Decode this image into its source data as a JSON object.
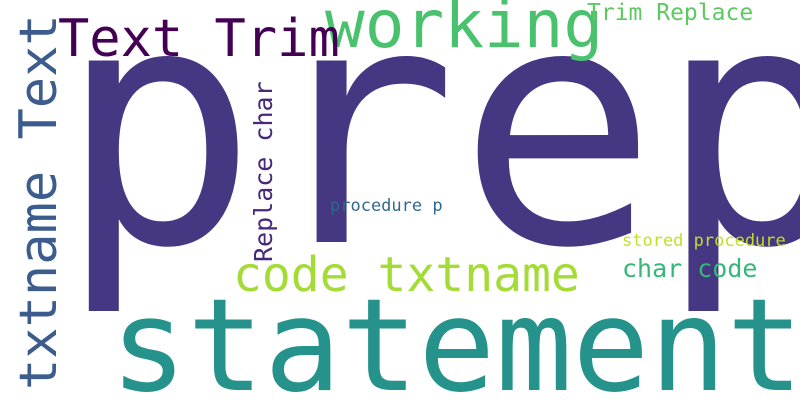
{
  "words": {
    "prep": {
      "text": "prep",
      "color": "#453781"
    },
    "statement": {
      "text": "statement",
      "color": "#25938b"
    },
    "working": {
      "text": "working",
      "color": "#4ac16d"
    },
    "text_trim": {
      "text": "Text Trim",
      "color": "#440154"
    },
    "txtname_text": {
      "text": "txtname Text",
      "color": "#3b5c8c"
    },
    "code_txtname": {
      "text": "code txtname",
      "color": "#a5db36"
    },
    "trim_replace": {
      "text": "Trim Replace",
      "color": "#5ec962"
    },
    "replace_char": {
      "text": "Replace char",
      "color": "#482878"
    },
    "char_code": {
      "text": "char code",
      "color": "#35b779"
    },
    "procedure_p": {
      "text": "procedure p",
      "color": "#31688e"
    },
    "stored_procedure": {
      "text": "stored procedure",
      "color": "#c2df23"
    }
  },
  "extra_colors": {
    "prep_p_right": "#22a884"
  }
}
